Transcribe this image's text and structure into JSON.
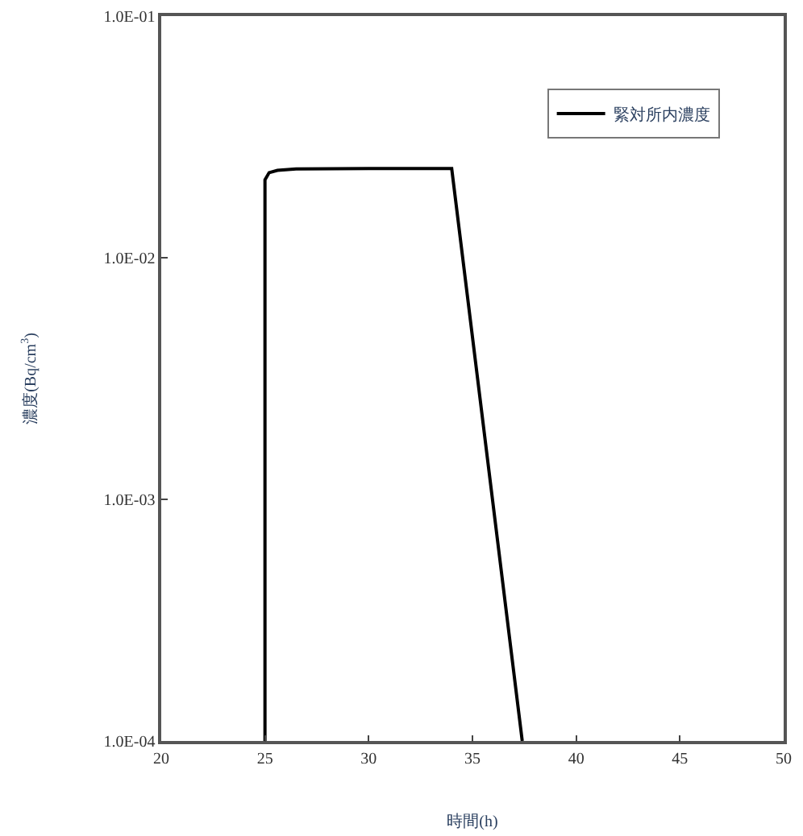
{
  "chart_data": {
    "type": "line",
    "xlabel": "時間(h)",
    "ylabel": "濃度(Bq/cm$^{3}$)",
    "log": "y",
    "xlim": [
      20,
      50
    ],
    "xticks": [
      20,
      25,
      30,
      35,
      40,
      45,
      50
    ],
    "ylim": [
      0.0001,
      0.1
    ],
    "yticks": [
      {
        "value": 0.0001,
        "label": "1.0E-04"
      },
      {
        "value": 0.001,
        "label": "1.0E-03"
      },
      {
        "value": 0.01,
        "label": "1.0E-02"
      },
      {
        "value": 0.1,
        "label": "1.0E-01"
      }
    ],
    "legend": "top right",
    "marker": "none",
    "line_style": "solid",
    "series": [
      {
        "name": "緊対所内濃度",
        "color": "#000000",
        "x": [
          25.0,
          25.0,
          25.2,
          25.6,
          26.5,
          30,
          34.0,
          37.4
        ],
        "values": [
          0.0001,
          0.021,
          0.0225,
          0.023,
          0.0233,
          0.0234,
          0.0234,
          0.0001
        ]
      }
    ]
  }
}
